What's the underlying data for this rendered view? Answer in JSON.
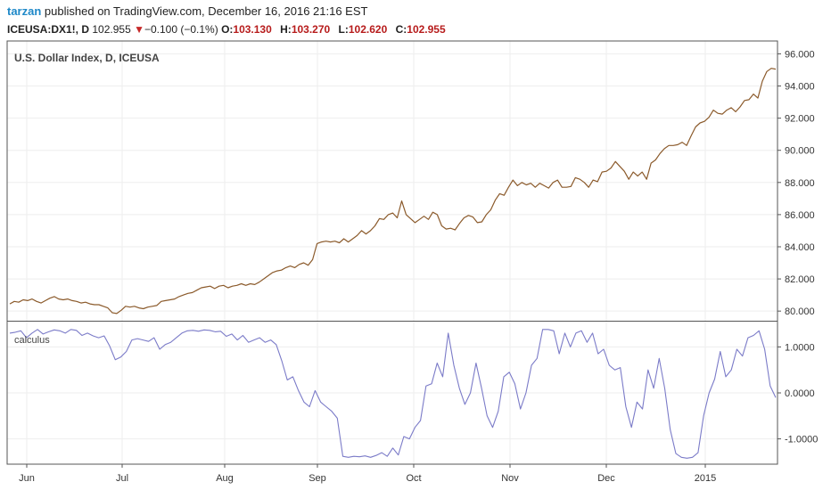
{
  "header": {
    "author": "tarzan",
    "published": "published on TradingView.com, December 16, 2016 21:16 EST",
    "symbol": "ICEUSA:DX1!, D",
    "last": "102.955",
    "change_arrow": "▼",
    "change": "−0.100 (−0.1%)",
    "o_label": "O:",
    "o_value": "103.130",
    "h_label": "H:",
    "h_value": "103.270",
    "l_label": "L:",
    "l_value": "102.620",
    "c_label": "C:",
    "c_value": "102.955"
  },
  "colors": {
    "price_line": "#8b5a2b",
    "indicator_line": "#7b7bc8",
    "grid": "#eeeeee",
    "frame": "#555555",
    "user_link": "#1e88c8",
    "value_red": "#b71c1c"
  },
  "chart_data": [
    {
      "type": "line",
      "title": "U.S. Dollar Index, D, ICEUSA",
      "ylim": [
        79.4,
        96.8
      ],
      "yticks": [
        "80.000",
        "82.000",
        "84.000",
        "86.000",
        "88.000",
        "90.000",
        "92.000",
        "94.000",
        "96.000"
      ],
      "ytick_values": [
        80,
        82,
        84,
        86,
        88,
        90,
        92,
        94,
        96
      ],
      "x_labels": [
        "Jun",
        "Jul",
        "Aug",
        "Sep",
        "Oct",
        "Nov",
        "Dec",
        "2015"
      ],
      "grid": true,
      "series": [
        {
          "values": [
            80.45,
            80.6,
            80.55,
            80.7,
            80.65,
            80.75,
            80.6,
            80.5,
            80.65,
            80.8,
            80.9,
            80.75,
            80.7,
            80.75,
            80.65,
            80.6,
            80.5,
            80.55,
            80.45,
            80.4,
            80.4,
            80.3,
            80.2,
            79.9,
            79.85,
            80.05,
            80.3,
            80.25,
            80.3,
            80.2,
            80.15,
            80.25,
            80.3,
            80.35,
            80.6,
            80.65,
            80.7,
            80.75,
            80.9,
            81.0,
            81.1,
            81.15,
            81.3,
            81.45,
            81.5,
            81.55,
            81.4,
            81.55,
            81.6,
            81.45,
            81.55,
            81.6,
            81.7,
            81.6,
            81.7,
            81.65,
            81.8,
            82.0,
            82.2,
            82.4,
            82.5,
            82.55,
            82.7,
            82.8,
            82.7,
            82.9,
            83.0,
            82.85,
            83.2,
            84.2,
            84.3,
            84.35,
            84.3,
            84.35,
            84.25,
            84.5,
            84.3,
            84.5,
            84.7,
            85.0,
            84.8,
            85.0,
            85.3,
            85.75,
            85.7,
            86.0,
            86.1,
            85.8,
            86.85,
            86.0,
            85.75,
            85.5,
            85.7,
            85.9,
            85.7,
            86.15,
            86.0,
            85.3,
            85.1,
            85.15,
            85.05,
            85.45,
            85.8,
            85.95,
            85.85,
            85.5,
            85.55,
            86.0,
            86.3,
            86.9,
            87.3,
            87.2,
            87.7,
            88.15,
            87.8,
            88.0,
            87.85,
            87.95,
            87.7,
            87.95,
            87.8,
            87.65,
            88.0,
            88.15,
            87.7,
            87.7,
            87.75,
            88.3,
            88.2,
            88.0,
            87.7,
            88.15,
            88.05,
            88.65,
            88.7,
            88.9,
            89.3,
            89.0,
            88.7,
            88.2,
            88.65,
            88.4,
            88.65,
            88.2,
            89.2,
            89.4,
            89.8,
            90.1,
            90.3,
            90.3,
            90.35,
            90.5,
            90.3,
            90.9,
            91.45,
            91.7,
            91.8,
            92.05,
            92.5,
            92.3,
            92.25,
            92.5,
            92.65,
            92.4,
            92.7,
            93.1,
            93.15,
            93.5,
            93.25,
            94.3,
            94.9,
            95.1,
            95.05
          ]
        }
      ]
    },
    {
      "type": "line",
      "title": "calculus",
      "ylim": [
        -1.55,
        1.55
      ],
      "yticks": [
        "1.0000",
        "0.0000",
        "-1.0000"
      ],
      "ytick_values": [
        1,
        0,
        -1
      ],
      "grid": true,
      "series": [
        {
          "values": [
            1.3,
            1.32,
            1.35,
            1.2,
            1.3,
            1.38,
            1.28,
            1.33,
            1.37,
            1.35,
            1.3,
            1.38,
            1.36,
            1.25,
            1.3,
            1.24,
            1.2,
            1.24,
            1.02,
            0.72,
            0.78,
            0.9,
            1.15,
            1.18,
            1.15,
            1.12,
            1.2,
            0.95,
            1.05,
            1.1,
            1.2,
            1.3,
            1.35,
            1.36,
            1.34,
            1.37,
            1.36,
            1.33,
            1.34,
            1.23,
            1.28,
            1.15,
            1.25,
            1.1,
            1.15,
            1.2,
            1.1,
            1.15,
            1.05,
            0.7,
            0.28,
            0.35,
            0.05,
            -0.2,
            -0.3,
            0.05,
            -0.2,
            -0.3,
            -0.4,
            -0.55,
            -1.38,
            -1.4,
            -1.38,
            -1.39,
            -1.37,
            -1.4,
            -1.36,
            -1.3,
            -1.38,
            -1.2,
            -1.35,
            -0.95,
            -1.0,
            -0.75,
            -0.6,
            0.15,
            0.2,
            0.65,
            0.35,
            1.3,
            0.6,
            0.1,
            -0.25,
            0.0,
            0.65,
            0.1,
            -0.5,
            -0.75,
            -0.4,
            0.35,
            0.45,
            0.2,
            -0.35,
            0.0,
            0.6,
            0.75,
            1.38,
            1.38,
            1.35,
            0.85,
            1.3,
            1.0,
            1.3,
            1.35,
            1.1,
            1.3,
            0.85,
            0.95,
            0.6,
            0.5,
            0.55,
            -0.3,
            -0.75,
            -0.2,
            -0.35,
            0.5,
            0.1,
            0.75,
            0.1,
            -0.8,
            -1.32,
            -1.4,
            -1.42,
            -1.4,
            -1.3,
            -0.5,
            0.0,
            0.3,
            0.9,
            0.35,
            0.5,
            0.95,
            0.8,
            1.2,
            1.25,
            1.35,
            0.95,
            0.15,
            -0.1
          ]
        }
      ]
    }
  ]
}
